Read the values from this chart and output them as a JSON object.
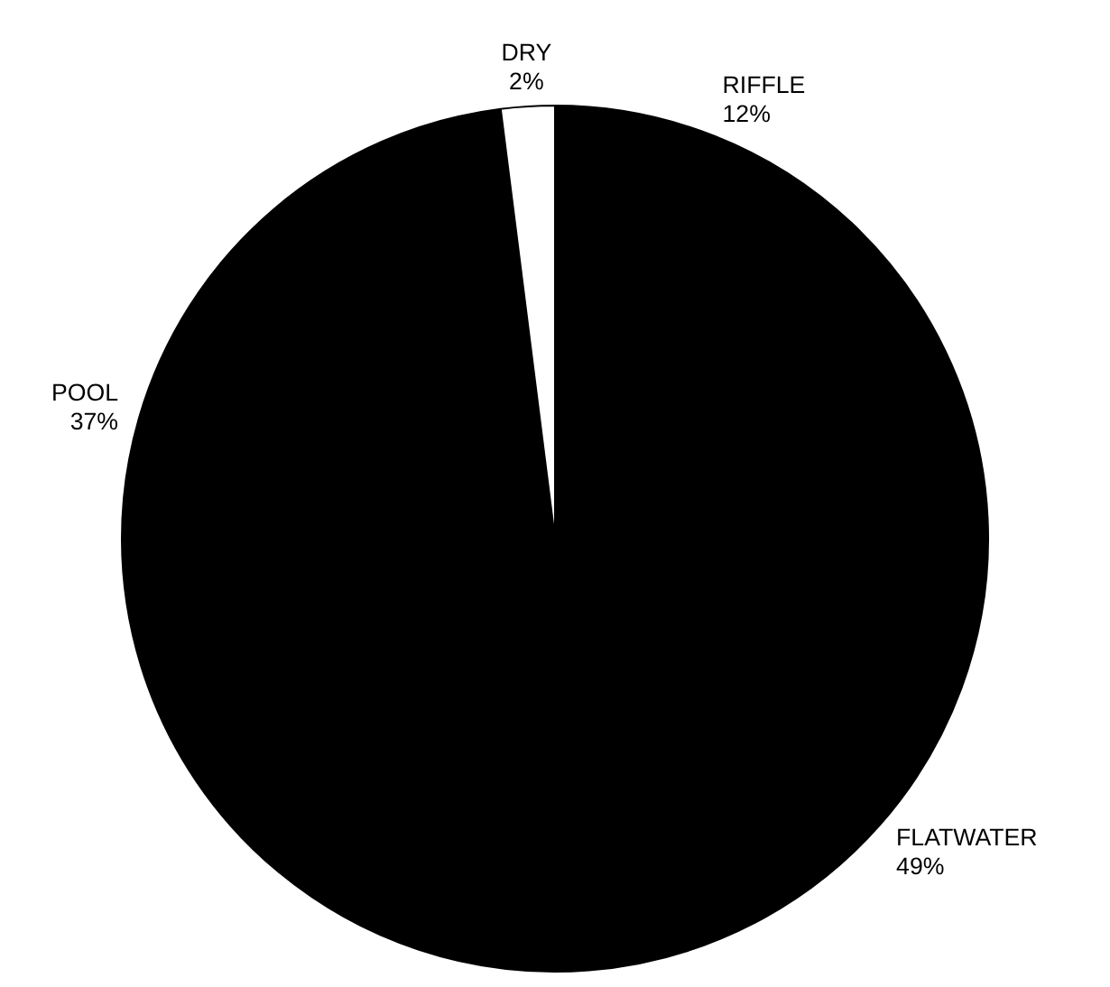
{
  "chart_data": {
    "type": "pie",
    "categories": [
      "RIFFLE",
      "FLATWATER",
      "POOL",
      "DRY"
    ],
    "values": [
      12,
      49,
      37,
      2
    ],
    "colors": [
      "#000000",
      "#000000",
      "#000000",
      "#ffffff"
    ],
    "value_labels": [
      "12%",
      "49%",
      "37%",
      "2%"
    ]
  }
}
